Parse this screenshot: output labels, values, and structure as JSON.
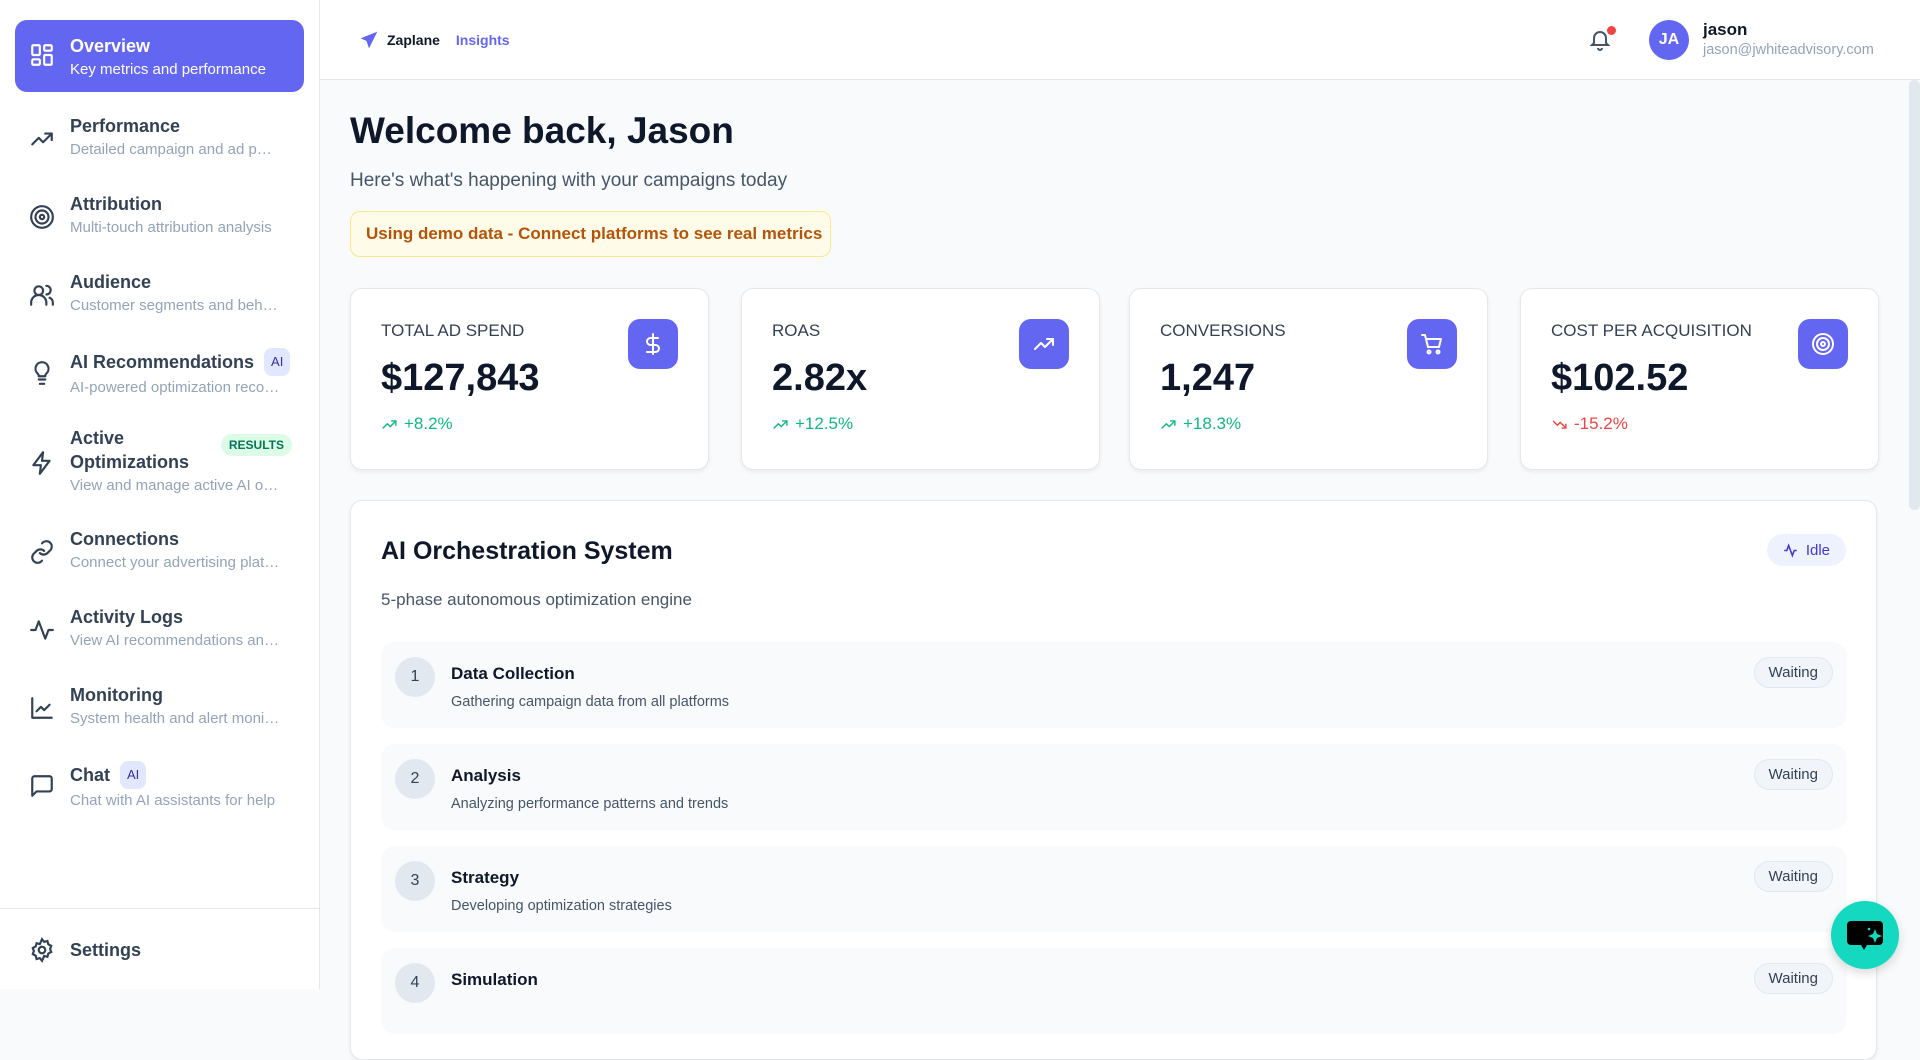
{
  "sidebar": {
    "items": [
      {
        "label": "Overview",
        "subtitle": "Key metrics and performance",
        "icon": "layout-grid-icon",
        "active": true
      },
      {
        "label": "Performance",
        "subtitle": "Detailed campaign and ad performance",
        "icon": "trending-up-icon"
      },
      {
        "label": "Attribution",
        "subtitle": "Multi-touch attribution analysis",
        "icon": "target-icon"
      },
      {
        "label": "Audience",
        "subtitle": "Customer segments and behavior",
        "icon": "users-icon"
      },
      {
        "label": "AI Recommendations",
        "subtitle": "AI-powered optimization recommendations",
        "icon": "lightbulb-icon",
        "badge": "AI"
      },
      {
        "label": "Active Optimizations",
        "subtitle": "View and manage active AI optimizations",
        "icon": "zap-icon",
        "badge": "RESULTS"
      },
      {
        "label": "Connections",
        "subtitle": "Connect your advertising platforms",
        "icon": "link-icon"
      },
      {
        "label": "Activity Logs",
        "subtitle": "View AI recommendations and actions",
        "icon": "activity-icon"
      },
      {
        "label": "Monitoring",
        "subtitle": "System health and alert monitoring",
        "icon": "line-chart-icon"
      },
      {
        "label": "Chat",
        "subtitle": "Chat with AI assistants for help",
        "icon": "message-square-icon",
        "badge": "AI"
      }
    ],
    "settings_label": "Settings"
  },
  "header": {
    "brand": "Zaplane",
    "product": "Insights",
    "user": {
      "name": "jason",
      "email": "jason@jwhiteadvisory.com",
      "initials": "JA"
    },
    "notification_dot": true
  },
  "main": {
    "title": "Welcome back, Jason",
    "subtitle": "Here's what's happening with your campaigns today",
    "demo_banner": "Using demo data - Connect platforms to see real metrics",
    "metrics": [
      {
        "label": "TOTAL AD SPEND",
        "value": "$127,843",
        "change": "+8.2%",
        "trend": "up",
        "icon": "dollar-icon"
      },
      {
        "label": "ROAS",
        "value": "2.82x",
        "change": "+12.5%",
        "trend": "up",
        "icon": "trending-up-icon"
      },
      {
        "label": "CONVERSIONS",
        "value": "1,247",
        "change": "+18.3%",
        "trend": "up",
        "icon": "cart-icon"
      },
      {
        "label": "COST PER ACQUISITION",
        "value": "$102.52",
        "change": "-15.2%",
        "trend": "down",
        "icon": "target-icon"
      }
    ],
    "orchestration": {
      "title": "AI Orchestration System",
      "subtitle": "5-phase autonomous optimization engine",
      "status": "Idle",
      "phases": [
        {
          "num": "1",
          "title": "Data Collection",
          "desc": "Gathering campaign data from all platforms",
          "status": "Waiting"
        },
        {
          "num": "2",
          "title": "Analysis",
          "desc": "Analyzing performance patterns and trends",
          "status": "Waiting"
        },
        {
          "num": "3",
          "title": "Strategy",
          "desc": "Developing optimization strategies",
          "status": "Waiting"
        },
        {
          "num": "4",
          "title": "Simulation",
          "desc": "",
          "status": "Waiting"
        }
      ]
    }
  },
  "colors": {
    "accent": "#6366f1",
    "positive": "#10b981",
    "negative": "#ef4444",
    "fab": "#14d9c0"
  }
}
